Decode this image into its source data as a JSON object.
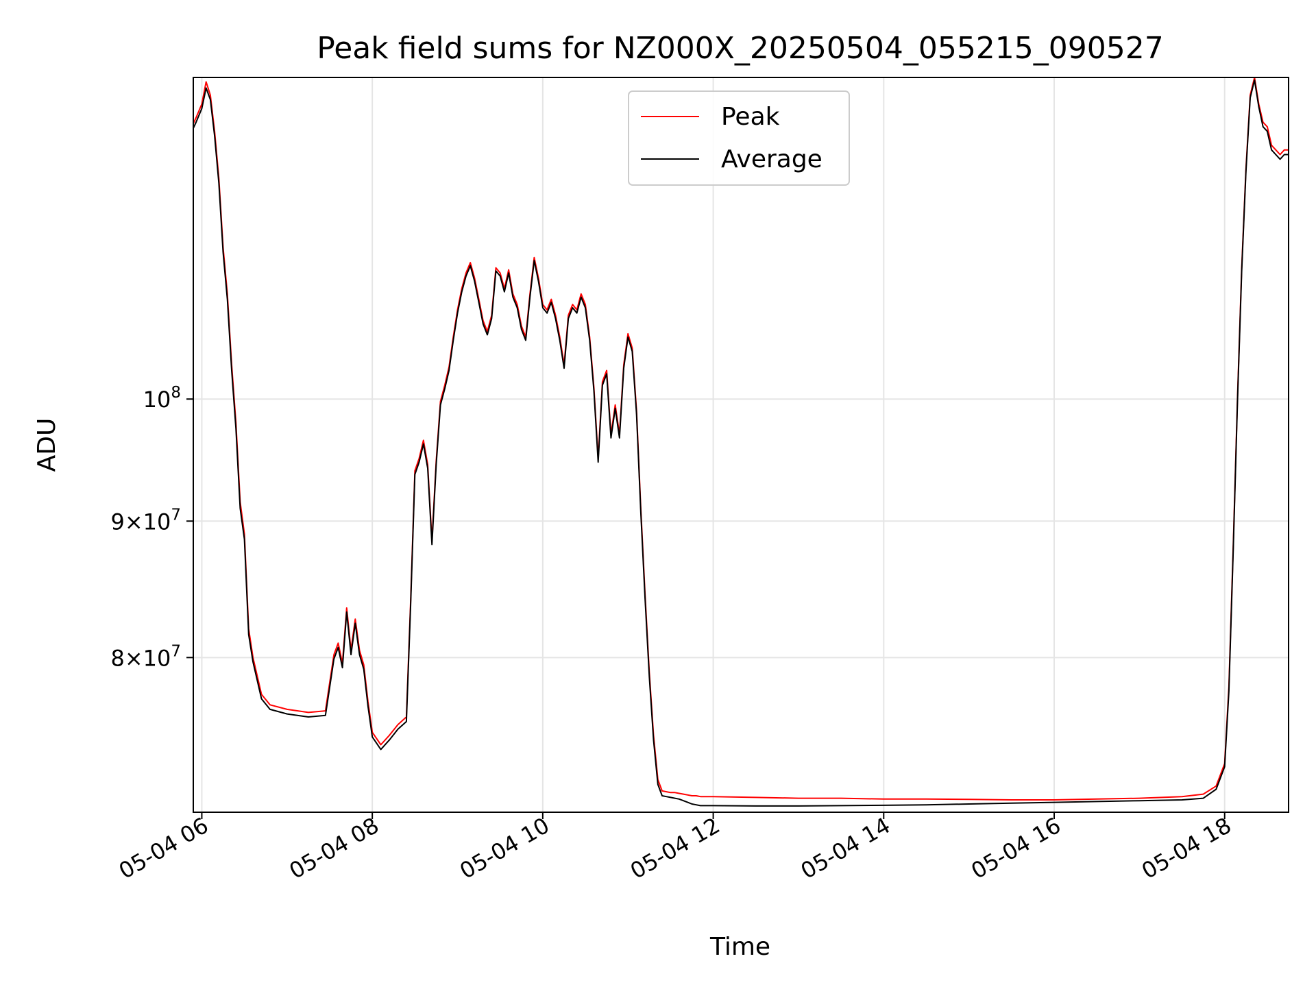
{
  "chart_data": {
    "type": "line",
    "title": "Peak field sums for NZ000X_20250504_055215_090527",
    "xlabel": "Time",
    "ylabel": "ADU",
    "x_unit": "hours (2025-05-04 local time axis)",
    "xlim": [
      "05-04 05:54",
      "05-04 18:45"
    ],
    "ylim": [
      70000000,
      132000000
    ],
    "yscale": "log",
    "grid": true,
    "legend_position": "upper center",
    "x_tick_labels": [
      "05-04 06",
      "05-04 08",
      "05-04 10",
      "05-04 12",
      "05-04 14",
      "05-04 16",
      "05-04 18"
    ],
    "x_ticks": [
      "05-04 06:00",
      "05-04 08:00",
      "05-04 10:00",
      "05-04 12:00",
      "05-04 14:00",
      "05-04 16:00",
      "05-04 18:00"
    ],
    "y_ticks": [
      {
        "value": 80000000,
        "mantissa": "8",
        "base": "10",
        "exponent": "7"
      },
      {
        "value": 90000000,
        "mantissa": "9",
        "base": "10",
        "exponent": "7"
      },
      {
        "value": 100000000,
        "mantissa": "",
        "base": "10",
        "exponent": "8"
      }
    ],
    "series": [
      {
        "name": "Peak",
        "color": "#ff0000",
        "x": [
          "05-04 05:53",
          "05-04 05:56",
          "05-04 06:00",
          "05-04 06:03",
          "05-04 06:06",
          "05-04 06:09",
          "05-04 06:12",
          "05-04 06:15",
          "05-04 06:18",
          "05-04 06:21",
          "05-04 06:24",
          "05-04 06:27",
          "05-04 06:30",
          "05-04 06:33",
          "05-04 06:36",
          "05-04 06:42",
          "05-04 06:48",
          "05-04 07:00",
          "05-04 07:15",
          "05-04 07:27",
          "05-04 07:33",
          "05-04 07:36",
          "05-04 07:39",
          "05-04 07:42",
          "05-04 07:45",
          "05-04 07:48",
          "05-04 07:51",
          "05-04 07:54",
          "05-04 07:57",
          "05-04 08:00",
          "05-04 08:06",
          "05-04 08:12",
          "05-04 08:18",
          "05-04 08:24",
          "05-04 08:27",
          "05-04 08:30",
          "05-04 08:33",
          "05-04 08:36",
          "05-04 08:39",
          "05-04 08:42",
          "05-04 08:45",
          "05-04 08:48",
          "05-04 08:51",
          "05-04 08:54",
          "05-04 08:57",
          "05-04 09:00",
          "05-04 09:03",
          "05-04 09:06",
          "05-04 09:09",
          "05-04 09:12",
          "05-04 09:15",
          "05-04 09:18",
          "05-04 09:21",
          "05-04 09:24",
          "05-04 09:27",
          "05-04 09:30",
          "05-04 09:33",
          "05-04 09:36",
          "05-04 09:39",
          "05-04 09:42",
          "05-04 09:45",
          "05-04 09:48",
          "05-04 09:51",
          "05-04 09:54",
          "05-04 09:57",
          "05-04 10:00",
          "05-04 10:03",
          "05-04 10:06",
          "05-04 10:09",
          "05-04 10:12",
          "05-04 10:15",
          "05-04 10:18",
          "05-04 10:21",
          "05-04 10:24",
          "05-04 10:27",
          "05-04 10:30",
          "05-04 10:33",
          "05-04 10:36",
          "05-04 10:39",
          "05-04 10:42",
          "05-04 10:45",
          "05-04 10:48",
          "05-04 10:51",
          "05-04 10:54",
          "05-04 10:57",
          "05-04 11:00",
          "05-04 11:03",
          "05-04 11:06",
          "05-04 11:09",
          "05-04 11:12",
          "05-04 11:15",
          "05-04 11:18",
          "05-04 11:21",
          "05-04 11:24",
          "05-04 11:27",
          "05-04 11:30",
          "05-04 11:33",
          "05-04 11:36",
          "05-04 11:39",
          "05-04 11:42",
          "05-04 11:45",
          "05-04 11:48",
          "05-04 11:51",
          "05-04 11:54",
          "05-04 12:00",
          "05-04 12:30",
          "05-04 13:00",
          "05-04 13:30",
          "05-04 14:00",
          "05-04 14:30",
          "05-04 15:00",
          "05-04 15:30",
          "05-04 16:00",
          "05-04 16:30",
          "05-04 17:00",
          "05-04 17:30",
          "05-04 17:45",
          "05-04 17:54",
          "05-04 18:00",
          "05-04 18:03",
          "05-04 18:06",
          "05-04 18:09",
          "05-04 18:12",
          "05-04 18:15",
          "05-04 18:18",
          "05-04 18:21",
          "05-04 18:24",
          "05-04 18:27",
          "05-04 18:30",
          "05-04 18:33",
          "05-04 18:36",
          "05-04 18:39",
          "05-04 18:42",
          "05-04 18:45"
        ],
        "y": [
          126500000,
          127500000,
          129000000,
          131500000,
          130000000,
          126000000,
          121000000,
          114000000,
          109500000,
          103000000,
          98000000,
          91500000,
          89000000,
          82000000,
          80000000,
          77500000,
          76800000,
          76500000,
          76300000,
          76400000,
          80200000,
          81000000,
          79600000,
          83500000,
          80500000,
          82700000,
          80500000,
          79500000,
          77000000,
          75000000,
          74200000,
          74800000,
          75500000,
          76000000,
          84000000,
          94000000,
          95000000,
          96500000,
          94500000,
          88500000,
          94800000,
          99800000,
          101200000,
          102800000,
          105500000,
          108000000,
          110000000,
          111500000,
          112500000,
          111000000,
          109000000,
          107000000,
          106000000,
          107500000,
          112000000,
          111500000,
          110000000,
          111800000,
          109500000,
          108500000,
          106500000,
          105500000,
          109500000,
          113000000,
          111000000,
          108500000,
          108000000,
          109000000,
          107500000,
          105500000,
          103000000,
          107500000,
          108500000,
          108000000,
          109500000,
          108500000,
          105500000,
          101000000,
          95000000,
          101500000,
          102500000,
          97000000,
          99500000,
          97000000,
          103000000,
          105800000,
          104500000,
          99000000,
          91000000,
          84500000,
          79000000,
          74800000,
          72000000,
          71300000,
          71250000,
          71200000,
          71200000,
          71150000,
          71100000,
          71050000,
          71000000,
          71000000,
          70950000,
          70950000,
          70950000,
          70900000,
          70850000,
          70850000,
          70800000,
          70800000,
          70780000,
          70750000,
          70750000,
          70800000,
          70850000,
          70950000,
          71100000,
          71600000,
          73000000,
          78000000,
          88000000,
          100000000,
          112000000,
          122000000,
          130000000,
          132000000,
          129000000,
          127000000,
          126500000,
          124500000,
          124000000,
          123500000,
          124000000,
          124000000
        ]
      },
      {
        "name": "Average",
        "color": "#000000",
        "x": [
          "05-04 05:53",
          "05-04 05:56",
          "05-04 06:00",
          "05-04 06:03",
          "05-04 06:06",
          "05-04 06:09",
          "05-04 06:12",
          "05-04 06:15",
          "05-04 06:18",
          "05-04 06:21",
          "05-04 06:24",
          "05-04 06:27",
          "05-04 06:30",
          "05-04 06:33",
          "05-04 06:36",
          "05-04 06:42",
          "05-04 06:48",
          "05-04 07:00",
          "05-04 07:15",
          "05-04 07:27",
          "05-04 07:33",
          "05-04 07:36",
          "05-04 07:39",
          "05-04 07:42",
          "05-04 07:45",
          "05-04 07:48",
          "05-04 07:51",
          "05-04 07:54",
          "05-04 07:57",
          "05-04 08:00",
          "05-04 08:06",
          "05-04 08:12",
          "05-04 08:18",
          "05-04 08:24",
          "05-04 08:27",
          "05-04 08:30",
          "05-04 08:33",
          "05-04 08:36",
          "05-04 08:39",
          "05-04 08:42",
          "05-04 08:45",
          "05-04 08:48",
          "05-04 08:51",
          "05-04 08:54",
          "05-04 08:57",
          "05-04 09:00",
          "05-04 09:03",
          "05-04 09:06",
          "05-04 09:09",
          "05-04 09:12",
          "05-04 09:15",
          "05-04 09:18",
          "05-04 09:21",
          "05-04 09:24",
          "05-04 09:27",
          "05-04 09:30",
          "05-04 09:33",
          "05-04 09:36",
          "05-04 09:39",
          "05-04 09:42",
          "05-04 09:45",
          "05-04 09:48",
          "05-04 09:51",
          "05-04 09:54",
          "05-04 09:57",
          "05-04 10:00",
          "05-04 10:03",
          "05-04 10:06",
          "05-04 10:09",
          "05-04 10:12",
          "05-04 10:15",
          "05-04 10:18",
          "05-04 10:21",
          "05-04 10:24",
          "05-04 10:27",
          "05-04 10:30",
          "05-04 10:33",
          "05-04 10:36",
          "05-04 10:39",
          "05-04 10:42",
          "05-04 10:45",
          "05-04 10:48",
          "05-04 10:51",
          "05-04 10:54",
          "05-04 10:57",
          "05-04 11:00",
          "05-04 11:03",
          "05-04 11:06",
          "05-04 11:09",
          "05-04 11:12",
          "05-04 11:15",
          "05-04 11:18",
          "05-04 11:21",
          "05-04 11:24",
          "05-04 11:27",
          "05-04 11:30",
          "05-04 11:33",
          "05-04 11:36",
          "05-04 11:39",
          "05-04 11:42",
          "05-04 11:45",
          "05-04 11:48",
          "05-04 11:51",
          "05-04 11:54",
          "05-04 12:00",
          "05-04 12:30",
          "05-04 13:00",
          "05-04 13:30",
          "05-04 14:00",
          "05-04 14:30",
          "05-04 15:00",
          "05-04 15:30",
          "05-04 16:00",
          "05-04 16:30",
          "05-04 17:00",
          "05-04 17:30",
          "05-04 17:45",
          "05-04 17:54",
          "05-04 18:00",
          "05-04 18:03",
          "05-04 18:06",
          "05-04 18:09",
          "05-04 18:12",
          "05-04 18:15",
          "05-04 18:18",
          "05-04 18:21",
          "05-04 18:24",
          "05-04 18:27",
          "05-04 18:30",
          "05-04 18:33",
          "05-04 18:36",
          "05-04 18:39",
          "05-04 18:42",
          "05-04 18:45"
        ],
        "y": [
          126000000,
          127000000,
          128500000,
          130800000,
          129500000,
          125500000,
          120500000,
          113500000,
          109000000,
          102500000,
          97500000,
          91000000,
          88600000,
          81600000,
          79700000,
          77200000,
          76500000,
          76200000,
          76000000,
          76100000,
          79900000,
          80700000,
          79300000,
          83200000,
          80200000,
          82400000,
          80200000,
          79200000,
          76700000,
          74700000,
          73900000,
          74500000,
          75200000,
          75700000,
          83700000,
          93700000,
          94700000,
          96200000,
          94200000,
          88200000,
          94500000,
          99500000,
          100900000,
          102500000,
          105200000,
          107700000,
          109700000,
          111200000,
          112200000,
          110700000,
          108700000,
          106700000,
          105700000,
          107200000,
          111700000,
          111200000,
          109700000,
          111500000,
          109200000,
          108200000,
          106200000,
          105200000,
          109200000,
          112700000,
          110700000,
          108200000,
          107700000,
          108700000,
          107200000,
          105200000,
          102700000,
          107200000,
          108200000,
          107700000,
          109200000,
          108200000,
          105200000,
          100700000,
          94700000,
          101200000,
          102200000,
          96700000,
          99200000,
          96700000,
          102700000,
          105500000,
          104200000,
          98700000,
          90700000,
          84200000,
          78700000,
          74500000,
          71700000,
          71000000,
          70950000,
          70900000,
          70850000,
          70800000,
          70700000,
          70600000,
          70500000,
          70450000,
          70400000,
          70400000,
          70400000,
          70380000,
          70380000,
          70400000,
          70420000,
          70450000,
          70500000,
          70550000,
          70600000,
          70650000,
          70700000,
          70750000,
          70850000,
          71400000,
          72800000,
          77700000,
          87700000,
          99700000,
          111700000,
          121700000,
          129700000,
          131700000,
          128700000,
          126500000,
          126000000,
          124000000,
          123500000,
          123000000,
          123500000,
          123500000
        ]
      }
    ]
  }
}
